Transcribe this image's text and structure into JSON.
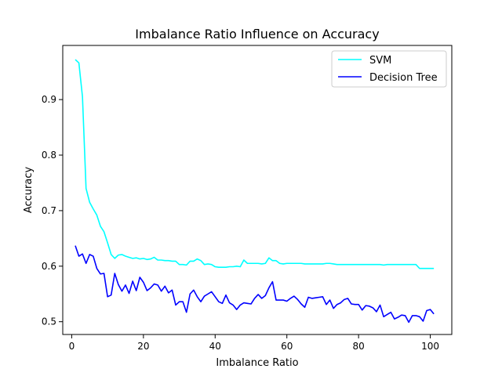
{
  "chart_data": {
    "type": "line",
    "title": "Imbalance Ratio Influence on Accuracy",
    "xlabel": "Imbalance Ratio",
    "ylabel": "Accuracy",
    "xlim": [
      -2.5,
      106
    ],
    "ylim": [
      0.477,
      0.9975
    ],
    "xticks": [
      0,
      20,
      40,
      60,
      80,
      100
    ],
    "yticks": [
      0.5,
      0.6,
      0.7,
      0.8,
      0.9
    ],
    "xtick_labels": [
      "0",
      "20",
      "40",
      "60",
      "80",
      "100"
    ],
    "ytick_labels": [
      "0.5",
      "0.6",
      "0.7",
      "0.8",
      "0.9"
    ],
    "grid": false,
    "legend_position": "top-right",
    "x": [
      1,
      2,
      3,
      4,
      5,
      6,
      7,
      8,
      9,
      10,
      11,
      12,
      13,
      14,
      15,
      16,
      17,
      18,
      19,
      20,
      21,
      22,
      23,
      24,
      25,
      26,
      27,
      28,
      29,
      30,
      31,
      32,
      33,
      34,
      35,
      36,
      37,
      38,
      39,
      40,
      41,
      42,
      43,
      44,
      45,
      46,
      47,
      48,
      49,
      50,
      51,
      52,
      53,
      54,
      55,
      56,
      57,
      58,
      59,
      60,
      61,
      62,
      63,
      64,
      65,
      66,
      67,
      68,
      69,
      70,
      71,
      72,
      73,
      74,
      75,
      76,
      77,
      78,
      79,
      80,
      81,
      82,
      83,
      84,
      85,
      86,
      87,
      88,
      89,
      90,
      91,
      92,
      93,
      94,
      95,
      96,
      97,
      98,
      99,
      100,
      101
    ],
    "series": [
      {
        "name": "SVM",
        "color": "#00ffff",
        "values": [
          0.972,
          0.966,
          0.905,
          0.74,
          0.715,
          0.703,
          0.692,
          0.672,
          0.662,
          0.642,
          0.621,
          0.614,
          0.62,
          0.621,
          0.618,
          0.616,
          0.614,
          0.615,
          0.613,
          0.614,
          0.612,
          0.613,
          0.616,
          0.611,
          0.611,
          0.61,
          0.61,
          0.609,
          0.609,
          0.603,
          0.603,
          0.602,
          0.609,
          0.609,
          0.613,
          0.61,
          0.603,
          0.604,
          0.603,
          0.599,
          0.598,
          0.598,
          0.598,
          0.599,
          0.599,
          0.6,
          0.599,
          0.611,
          0.605,
          0.605,
          0.605,
          0.605,
          0.604,
          0.605,
          0.615,
          0.61,
          0.61,
          0.605,
          0.604,
          0.605,
          0.605,
          0.605,
          0.605,
          0.605,
          0.604,
          0.604,
          0.604,
          0.604,
          0.604,
          0.604,
          0.605,
          0.605,
          0.604,
          0.603,
          0.603,
          0.603,
          0.603,
          0.603,
          0.603,
          0.603,
          0.603,
          0.603,
          0.603,
          0.603,
          0.603,
          0.603,
          0.602,
          0.603,
          0.603,
          0.603,
          0.603,
          0.603,
          0.603,
          0.603,
          0.603,
          0.603,
          0.596,
          0.596,
          0.596,
          0.596,
          0.596
        ]
      },
      {
        "name": "Decision Tree",
        "color": "#0000ff",
        "values": [
          0.637,
          0.618,
          0.622,
          0.605,
          0.621,
          0.618,
          0.596,
          0.586,
          0.587,
          0.545,
          0.548,
          0.587,
          0.567,
          0.555,
          0.566,
          0.551,
          0.573,
          0.556,
          0.58,
          0.571,
          0.556,
          0.561,
          0.568,
          0.566,
          0.555,
          0.564,
          0.552,
          0.557,
          0.53,
          0.536,
          0.536,
          0.517,
          0.55,
          0.557,
          0.545,
          0.536,
          0.546,
          0.55,
          0.554,
          0.545,
          0.536,
          0.533,
          0.548,
          0.534,
          0.53,
          0.522,
          0.53,
          0.534,
          0.533,
          0.532,
          0.542,
          0.549,
          0.542,
          0.547,
          0.561,
          0.572,
          0.539,
          0.539,
          0.539,
          0.537,
          0.542,
          0.546,
          0.54,
          0.532,
          0.526,
          0.544,
          0.542,
          0.543,
          0.544,
          0.545,
          0.531,
          0.539,
          0.524,
          0.531,
          0.534,
          0.54,
          0.542,
          0.532,
          0.531,
          0.531,
          0.521,
          0.529,
          0.528,
          0.525,
          0.518,
          0.53,
          0.509,
          0.513,
          0.517,
          0.505,
          0.508,
          0.512,
          0.511,
          0.499,
          0.511,
          0.511,
          0.509,
          0.501,
          0.52,
          0.522,
          0.514
        ]
      }
    ]
  }
}
